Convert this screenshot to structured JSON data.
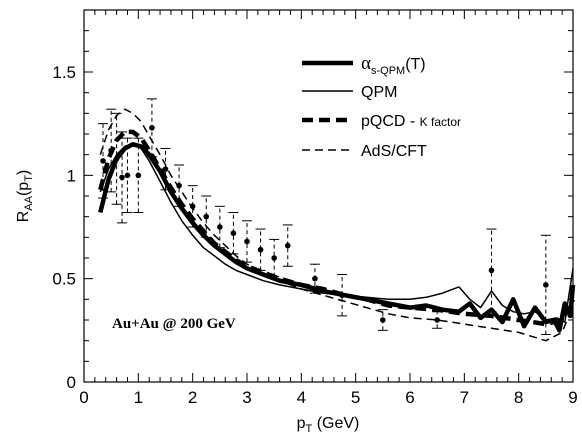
{
  "chart_data": {
    "type": "line",
    "xlabel_main": "p",
    "xlabel_sub": "T",
    "xlabel_unit": " (GeV)",
    "ylabel_main": "R",
    "ylabel_sub": "AA",
    "ylabel_arg_open": "(p",
    "ylabel_arg_sub": "T",
    "ylabel_arg_close": ")",
    "xlim": [
      0,
      9
    ],
    "ylim": [
      0,
      1.8
    ],
    "x_ticks": [
      "0",
      "1",
      "2",
      "3",
      "4",
      "5",
      "6",
      "7",
      "8",
      "9"
    ],
    "y_ticks": [
      {
        "value": 0,
        "label": "0"
      },
      {
        "value": 0.5,
        "label": "0.5"
      },
      {
        "value": 1,
        "label": "1"
      },
      {
        "value": 1.5,
        "label": "1.5"
      }
    ],
    "legend_position": "top-right",
    "annotation": "Au+Au @ 200 GeV",
    "series": [
      {
        "name": "αs-QPM(T)",
        "legend": {
          "symbol": "α",
          "sub": "s-QPM",
          "tail": "(T)"
        },
        "style": "thick-solid",
        "points": [
          [
            0.3,
            0.82
          ],
          [
            0.45,
            0.98
          ],
          [
            0.6,
            1.08
          ],
          [
            0.75,
            1.13
          ],
          [
            0.9,
            1.15
          ],
          [
            1.05,
            1.14
          ],
          [
            1.2,
            1.1
          ],
          [
            1.4,
            1.02
          ],
          [
            1.6,
            0.92
          ],
          [
            1.8,
            0.84
          ],
          [
            2.0,
            0.77
          ],
          [
            2.2,
            0.71
          ],
          [
            2.4,
            0.66
          ],
          [
            2.6,
            0.62
          ],
          [
            2.8,
            0.58
          ],
          [
            3.0,
            0.55
          ],
          [
            3.3,
            0.52
          ],
          [
            3.6,
            0.49
          ],
          [
            4.0,
            0.47
          ],
          [
            4.4,
            0.44
          ],
          [
            4.8,
            0.42
          ],
          [
            5.2,
            0.4
          ],
          [
            5.6,
            0.38
          ],
          [
            6.0,
            0.36
          ],
          [
            6.3,
            0.37
          ],
          [
            6.6,
            0.35
          ],
          [
            6.9,
            0.34
          ],
          [
            7.1,
            0.38
          ],
          [
            7.3,
            0.31
          ],
          [
            7.5,
            0.35
          ],
          [
            7.7,
            0.29
          ],
          [
            7.9,
            0.4
          ],
          [
            8.1,
            0.27
          ],
          [
            8.3,
            0.36
          ],
          [
            8.5,
            0.29
          ],
          [
            8.65,
            0.3
          ],
          [
            8.75,
            0.25
          ],
          [
            8.85,
            0.38
          ],
          [
            8.95,
            0.32
          ],
          [
            9.0,
            0.47
          ]
        ]
      },
      {
        "name": "QPM",
        "legend": {
          "text": "QPM"
        },
        "style": "thin-solid",
        "points": [
          [
            0.3,
            0.92
          ],
          [
            0.45,
            1.03
          ],
          [
            0.6,
            1.1
          ],
          [
            0.75,
            1.14
          ],
          [
            0.9,
            1.15
          ],
          [
            1.05,
            1.13
          ],
          [
            1.2,
            1.07
          ],
          [
            1.4,
            0.97
          ],
          [
            1.6,
            0.87
          ],
          [
            1.8,
            0.78
          ],
          [
            2.0,
            0.71
          ],
          [
            2.2,
            0.65
          ],
          [
            2.4,
            0.61
          ],
          [
            2.6,
            0.57
          ],
          [
            2.8,
            0.54
          ],
          [
            3.0,
            0.52
          ],
          [
            3.3,
            0.49
          ],
          [
            3.6,
            0.47
          ],
          [
            4.0,
            0.45
          ],
          [
            4.4,
            0.43
          ],
          [
            4.8,
            0.42
          ],
          [
            5.2,
            0.41
          ],
          [
            5.6,
            0.4
          ],
          [
            6.0,
            0.4
          ],
          [
            6.3,
            0.41
          ],
          [
            6.6,
            0.43
          ],
          [
            6.9,
            0.46
          ],
          [
            7.1,
            0.4
          ],
          [
            7.3,
            0.36
          ],
          [
            7.5,
            0.44
          ],
          [
            7.7,
            0.37
          ],
          [
            7.9,
            0.34
          ],
          [
            8.1,
            0.33
          ],
          [
            8.3,
            0.34
          ],
          [
            8.5,
            0.3
          ],
          [
            8.7,
            0.31
          ],
          [
            8.85,
            0.29
          ],
          [
            9.0,
            0.55
          ]
        ]
      },
      {
        "name": "pQCD - K factor",
        "legend": {
          "text": "pQCD - ",
          "small": "K factor"
        },
        "style": "thick-dashed",
        "points": [
          [
            0.3,
            0.93
          ],
          [
            0.45,
            1.08
          ],
          [
            0.6,
            1.17
          ],
          [
            0.75,
            1.21
          ],
          [
            0.9,
            1.21
          ],
          [
            1.05,
            1.18
          ],
          [
            1.2,
            1.12
          ],
          [
            1.4,
            1.03
          ],
          [
            1.6,
            0.94
          ],
          [
            1.8,
            0.86
          ],
          [
            2.0,
            0.79
          ],
          [
            2.2,
            0.73
          ],
          [
            2.4,
            0.67
          ],
          [
            2.6,
            0.63
          ],
          [
            2.8,
            0.59
          ],
          [
            3.0,
            0.56
          ],
          [
            3.3,
            0.53
          ],
          [
            3.6,
            0.5
          ],
          [
            4.0,
            0.47
          ],
          [
            4.4,
            0.45
          ],
          [
            4.8,
            0.42
          ],
          [
            5.2,
            0.4
          ],
          [
            5.6,
            0.37
          ],
          [
            6.0,
            0.36
          ],
          [
            6.5,
            0.35
          ],
          [
            7.0,
            0.33
          ],
          [
            7.5,
            0.32
          ],
          [
            8.0,
            0.3
          ],
          [
            8.5,
            0.28
          ],
          [
            8.8,
            0.3
          ],
          [
            9.0,
            0.4
          ]
        ]
      },
      {
        "name": "AdS/CFT",
        "legend": {
          "text": "AdS/CFT"
        },
        "style": "thin-dashed",
        "points": [
          [
            0.3,
            1.1
          ],
          [
            0.45,
            1.22
          ],
          [
            0.6,
            1.29
          ],
          [
            0.75,
            1.32
          ],
          [
            0.9,
            1.3
          ],
          [
            1.05,
            1.26
          ],
          [
            1.2,
            1.19
          ],
          [
            1.4,
            1.1
          ],
          [
            1.6,
            1.0
          ],
          [
            1.8,
            0.92
          ],
          [
            2.0,
            0.84
          ],
          [
            2.2,
            0.77
          ],
          [
            2.4,
            0.71
          ],
          [
            2.6,
            0.66
          ],
          [
            2.8,
            0.61
          ],
          [
            3.0,
            0.57
          ],
          [
            3.3,
            0.53
          ],
          [
            3.6,
            0.49
          ],
          [
            4.0,
            0.45
          ],
          [
            4.4,
            0.42
          ],
          [
            4.8,
            0.39
          ],
          [
            5.2,
            0.36
          ],
          [
            5.6,
            0.33
          ],
          [
            6.0,
            0.31
          ],
          [
            6.5,
            0.3
          ],
          [
            7.0,
            0.28
          ],
          [
            7.5,
            0.26
          ],
          [
            8.0,
            0.24
          ],
          [
            8.5,
            0.2
          ],
          [
            8.8,
            0.24
          ],
          [
            9.0,
            0.37
          ]
        ]
      }
    ],
    "data_points": [
      {
        "x": 0.35,
        "y": 1.07,
        "yerr": 0.18
      },
      {
        "x": 0.5,
        "y": 1.12,
        "yerr": 0.2
      },
      {
        "x": 0.6,
        "y": 1.08,
        "yerr": 0.22
      },
      {
        "x": 0.7,
        "y": 0.99,
        "yerr": 0.22
      },
      {
        "x": 0.8,
        "y": 1.0,
        "yerr": 0.18
      },
      {
        "x": 1.0,
        "y": 1.0,
        "yerr": 0.18
      },
      {
        "x": 1.25,
        "y": 1.23,
        "yerr": 0.14
      },
      {
        "x": 1.5,
        "y": 1.03,
        "yerr": 0.1
      },
      {
        "x": 1.75,
        "y": 0.95,
        "yerr": 0.1
      },
      {
        "x": 2.0,
        "y": 0.85,
        "yerr": 0.1
      },
      {
        "x": 2.25,
        "y": 0.8,
        "yerr": 0.1
      },
      {
        "x": 2.5,
        "y": 0.75,
        "yerr": 0.1
      },
      {
        "x": 2.75,
        "y": 0.72,
        "yerr": 0.1
      },
      {
        "x": 3.0,
        "y": 0.68,
        "yerr": 0.1
      },
      {
        "x": 3.25,
        "y": 0.64,
        "yerr": 0.1
      },
      {
        "x": 3.5,
        "y": 0.6,
        "yerr": 0.09
      },
      {
        "x": 3.75,
        "y": 0.66,
        "yerr": 0.1
      },
      {
        "x": 4.25,
        "y": 0.5,
        "yerr": 0.07
      },
      {
        "x": 4.75,
        "y": 0.42,
        "yerr": 0.1
      },
      {
        "x": 5.5,
        "y": 0.3,
        "yerr": 0.05
      },
      {
        "x": 6.5,
        "y": 0.3,
        "yerr": 0.04
      },
      {
        "x": 7.5,
        "y": 0.54,
        "yerr": 0.2
      },
      {
        "x": 8.5,
        "y": 0.47,
        "yerr": 0.24
      }
    ]
  }
}
